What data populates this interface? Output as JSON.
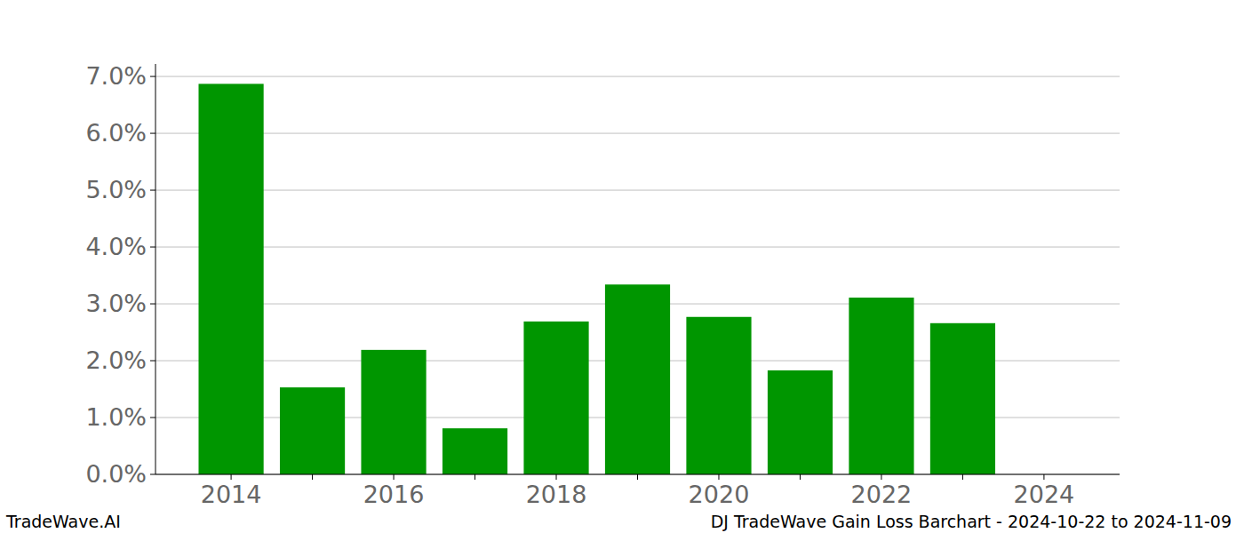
{
  "chart_data": {
    "type": "bar",
    "title": "DJ TradeWave Gain Loss Barchart - 2024-10-22 to 2024-11-09",
    "source_label": "TradeWave.AI",
    "categories": [
      "2014",
      null,
      "2016",
      null,
      "2018",
      null,
      "2020",
      null,
      "2022",
      null,
      "2024"
    ],
    "values": [
      6.87,
      1.53,
      2.19,
      0.81,
      2.69,
      3.34,
      2.77,
      1.83,
      3.11,
      2.66,
      null
    ],
    "color": "#009600",
    "ylim": [
      0,
      7.22
    ],
    "yticks": [
      {
        "value": 0,
        "label": "0.0%"
      },
      {
        "value": 1,
        "label": "1.0%"
      },
      {
        "value": 2,
        "label": "2.0%"
      },
      {
        "value": 3,
        "label": "3.0%"
      },
      {
        "value": 4,
        "label": "4.0%"
      },
      {
        "value": 5,
        "label": "5.0%"
      },
      {
        "value": 6,
        "label": "6.0%"
      },
      {
        "value": 7,
        "label": "7.0%"
      }
    ],
    "grid": true
  }
}
